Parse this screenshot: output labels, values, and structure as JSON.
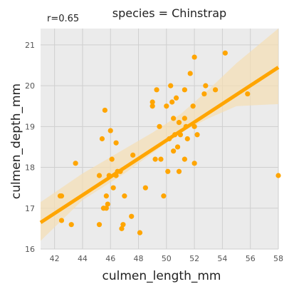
{
  "chart_data": {
    "type": "scatter",
    "title": "species = Chinstrap",
    "annotation": "r=0.65",
    "xlabel": "culmen_length_mm",
    "ylabel": "culmen_depth_mm",
    "xlim": [
      41,
      58
    ],
    "ylim": [
      16,
      21.4
    ],
    "xticks": [
      42,
      44,
      46,
      48,
      50,
      52,
      54,
      56,
      58
    ],
    "yticks": [
      16,
      17,
      18,
      19,
      20,
      21
    ],
    "grid": true,
    "point_color": "#ffa500",
    "band_color": "#f5deb3",
    "background_color": "#ebebeb",
    "regression": {
      "x": [
        41,
        58
      ],
      "y": [
        16.65,
        20.45
      ],
      "ci_upper_x": [
        41,
        44,
        47,
        49,
        51,
        53,
        55,
        58
      ],
      "ci_upper_y": [
        17.15,
        17.85,
        18.45,
        18.85,
        19.3,
        19.9,
        20.55,
        21.4
      ],
      "ci_lower_x": [
        58,
        55,
        53,
        51,
        49,
        47,
        44,
        41
      ],
      "ci_lower_y": [
        19.55,
        19.5,
        19.2,
        18.85,
        18.35,
        17.85,
        17.2,
        16.2
      ]
    },
    "points": [
      [
        42.4,
        17.3
      ],
      [
        42.5,
        17.3
      ],
      [
        42.5,
        16.7
      ],
      [
        43.2,
        16.6
      ],
      [
        43.5,
        18.1
      ],
      [
        45.2,
        17.8
      ],
      [
        45.2,
        16.6
      ],
      [
        45.4,
        18.7
      ],
      [
        45.5,
        17.0
      ],
      [
        45.6,
        19.4
      ],
      [
        45.7,
        17.0
      ],
      [
        45.7,
        17.3
      ],
      [
        45.8,
        17.1
      ],
      [
        45.9,
        17.8
      ],
      [
        46.0,
        18.9
      ],
      [
        46.1,
        18.2
      ],
      [
        46.2,
        17.5
      ],
      [
        46.4,
        18.6
      ],
      [
        46.4,
        17.8
      ],
      [
        46.5,
        17.9
      ],
      [
        46.7,
        17.9
      ],
      [
        46.8,
        16.5
      ],
      [
        46.9,
        16.6
      ],
      [
        47.0,
        17.3
      ],
      [
        47.5,
        16.8
      ],
      [
        47.6,
        18.3
      ],
      [
        48.1,
        16.4
      ],
      [
        48.5,
        17.5
      ],
      [
        49.0,
        19.5
      ],
      [
        49.0,
        19.6
      ],
      [
        49.2,
        18.2
      ],
      [
        49.3,
        19.9
      ],
      [
        49.5,
        19.0
      ],
      [
        49.6,
        18.2
      ],
      [
        49.8,
        17.3
      ],
      [
        50.0,
        19.5
      ],
      [
        50.1,
        17.9
      ],
      [
        50.2,
        18.7
      ],
      [
        50.3,
        20.0
      ],
      [
        50.4,
        19.6
      ],
      [
        50.5,
        18.4
      ],
      [
        50.5,
        19.2
      ],
      [
        50.6,
        18.8
      ],
      [
        50.7,
        19.7
      ],
      [
        50.8,
        18.5
      ],
      [
        50.9,
        17.9
      ],
      [
        50.9,
        19.1
      ],
      [
        51.0,
        18.8
      ],
      [
        51.3,
        18.2
      ],
      [
        51.3,
        19.9
      ],
      [
        51.3,
        19.2
      ],
      [
        51.4,
        19.0
      ],
      [
        51.5,
        18.7
      ],
      [
        51.7,
        20.3
      ],
      [
        51.9,
        19.5
      ],
      [
        52.0,
        18.1
      ],
      [
        52.0,
        20.7
      ],
      [
        52.0,
        19.0
      ],
      [
        52.2,
        18.8
      ],
      [
        52.7,
        19.8
      ],
      [
        52.8,
        20.0
      ],
      [
        53.5,
        19.9
      ],
      [
        54.2,
        20.8
      ],
      [
        55.8,
        19.8
      ],
      [
        58.0,
        17.8
      ]
    ]
  }
}
